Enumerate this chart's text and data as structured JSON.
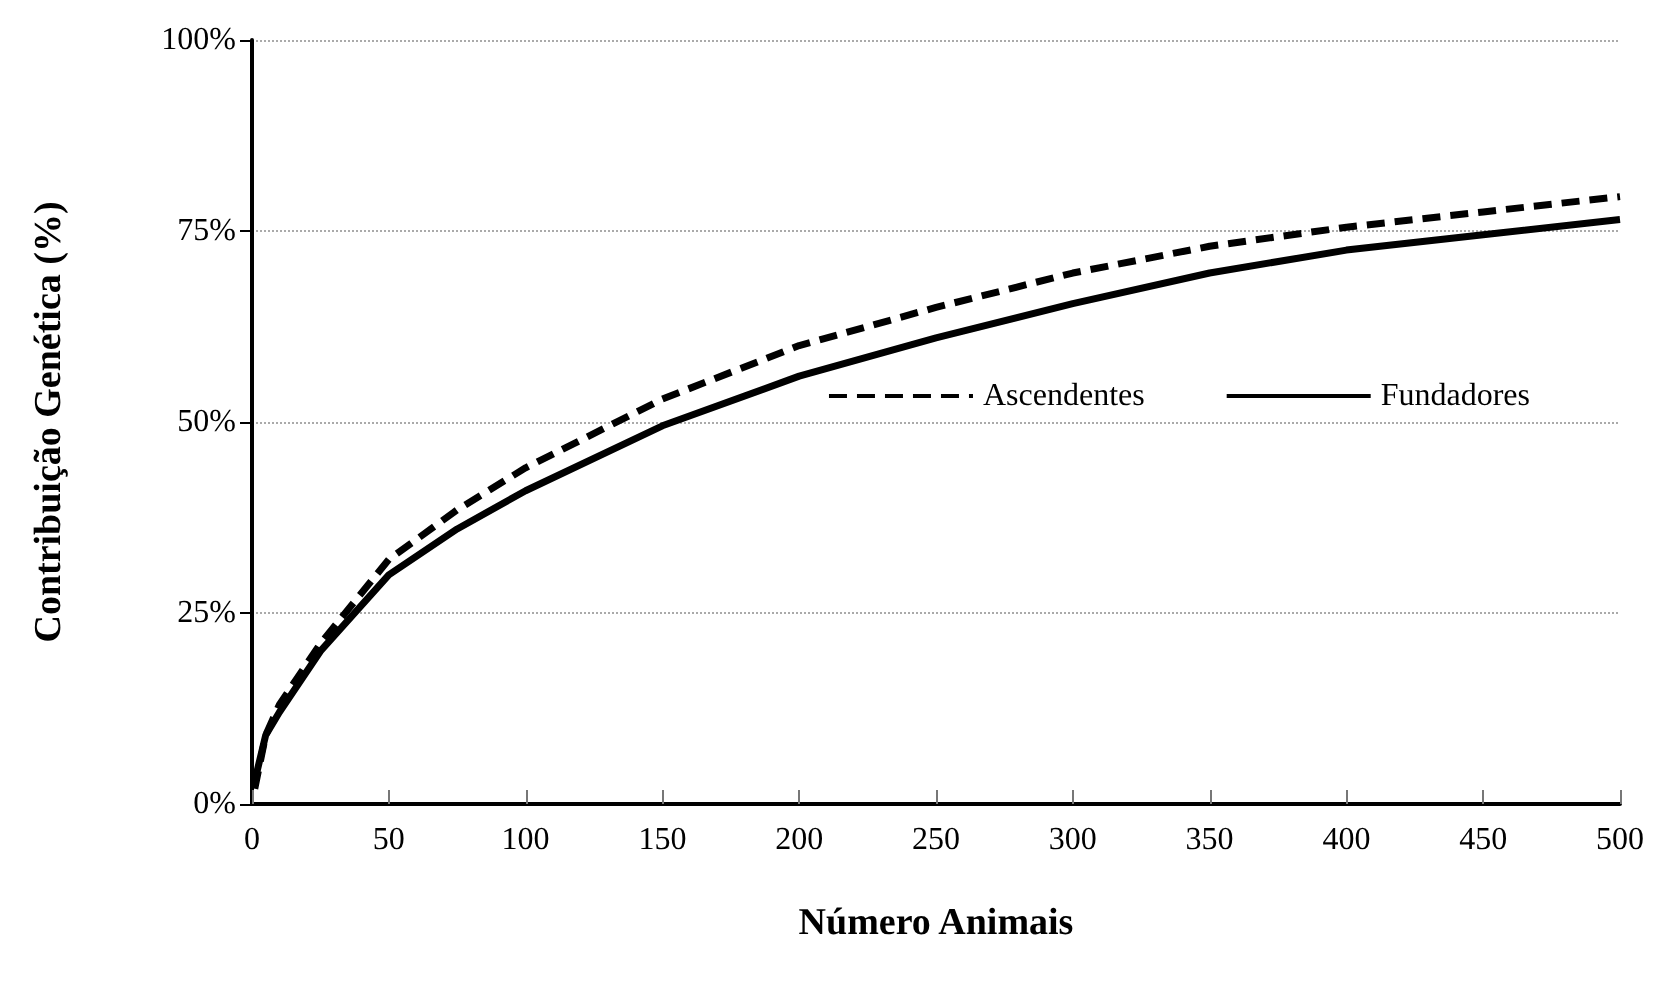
{
  "chart_data": {
    "type": "line",
    "xlabel": "Número Animais",
    "ylabel": "Contribuição Genética (%)",
    "xlim": [
      0,
      500
    ],
    "xticks": [
      0,
      50,
      100,
      150,
      200,
      250,
      300,
      350,
      400,
      450,
      500
    ],
    "ylim": [
      0,
      100
    ],
    "yticks": [
      {
        "value": 0,
        "label": "0%"
      },
      {
        "value": 25,
        "label": "25%"
      },
      {
        "value": 50,
        "label": "50%"
      },
      {
        "value": 75,
        "label": "75%"
      },
      {
        "value": 100,
        "label": "100%"
      }
    ],
    "grid": "y",
    "legend": "right",
    "marker": "none",
    "series": [
      {
        "name": "Ascendentes",
        "color": "#000000",
        "line_style": "dashed",
        "x": [
          1,
          5,
          10,
          25,
          50,
          75,
          100,
          150,
          200,
          250,
          300,
          350,
          400,
          450,
          500
        ],
        "values": [
          2,
          9,
          13,
          21,
          32,
          38.5,
          44,
          53,
          60,
          65,
          69.5,
          73,
          75.5,
          77.5,
          79.5
        ]
      },
      {
        "name": "Fundadores",
        "color": "#000000",
        "line_style": "solid",
        "x": [
          1,
          5,
          10,
          25,
          50,
          75,
          100,
          150,
          200,
          250,
          300,
          350,
          400,
          450,
          500
        ],
        "values": [
          3,
          9,
          12,
          20,
          30,
          36,
          41,
          49.5,
          56,
          61,
          65.5,
          69.5,
          72.5,
          74.5,
          76.5
        ]
      }
    ]
  }
}
